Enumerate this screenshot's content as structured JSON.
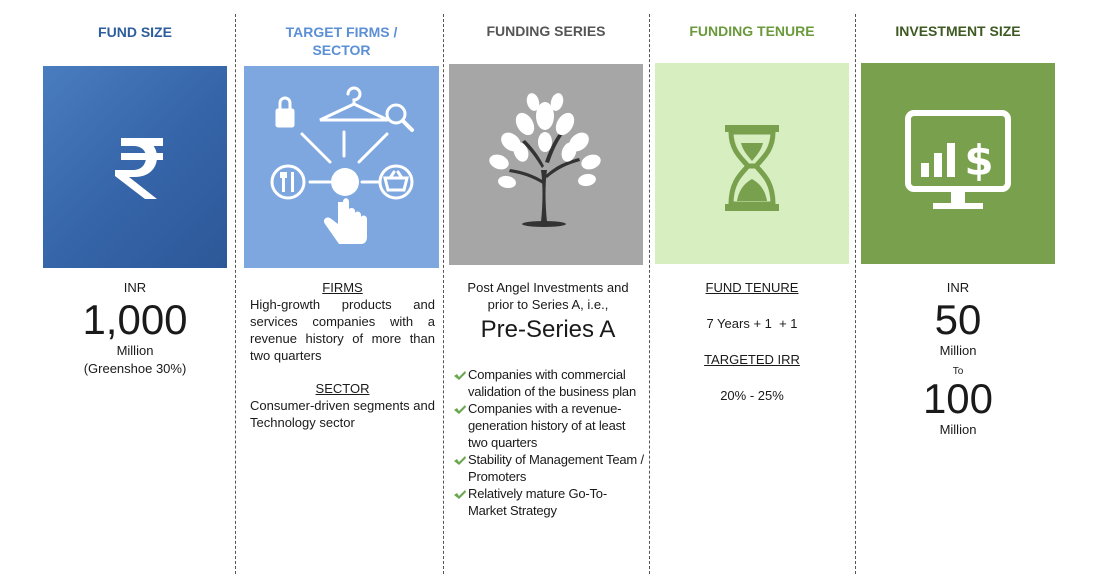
{
  "columns": [
    {
      "heading": "FUND SIZE",
      "heading_color": "#2e5d9e",
      "tile_color": "#3a67ac",
      "icon": "rupee-icon",
      "prefix": "INR",
      "amount": "1,000",
      "unit": "Million",
      "note": "(Greenshoe 30%)"
    },
    {
      "heading": "TARGET FIRMS / SECTOR",
      "heading_color": "#5b8fd6",
      "tile_color": "#7ea7e0",
      "icon": "target-firms-icon",
      "firms_title": "FIRMS",
      "firms_text": "High-growth products and services companies with a revenue history of more than two quarters",
      "sector_title": "SECTOR",
      "sector_text": "Consumer-driven segments and Technology sector"
    },
    {
      "heading": "FUNDING SERIES",
      "heading_color": "#555555",
      "tile_color": "#a6a6a6",
      "icon": "tree-icon",
      "intro": "Post Angel Investments and prior to Series A, i.e.,",
      "stage": "Pre-Series A",
      "bullets": [
        "Companies with commercial validation of the business plan",
        "Companies with a revenue-generation history of at least two quarters",
        "Stability of Management Team / Promoters",
        "Relatively mature Go-To-Market Strategy"
      ]
    },
    {
      "heading": "FUNDING TENURE",
      "heading_color": "#6a9a3c",
      "tile_color": "#d6eec0",
      "icon": "hourglass-icon",
      "tenure_title": "FUND TENURE",
      "tenure_value": "7 Years + 1  + 1",
      "irr_title": "TARGETED IRR",
      "irr_value": "20% - 25%"
    },
    {
      "heading": "INVESTMENT SIZE",
      "heading_color": "#3e5a22",
      "tile_color": "#79a04c",
      "icon": "investment-monitor-icon",
      "prefix": "INR",
      "min_amount": "50",
      "min_unit": "Million",
      "connector": "To",
      "max_amount": "100",
      "max_unit": "Million"
    }
  ]
}
